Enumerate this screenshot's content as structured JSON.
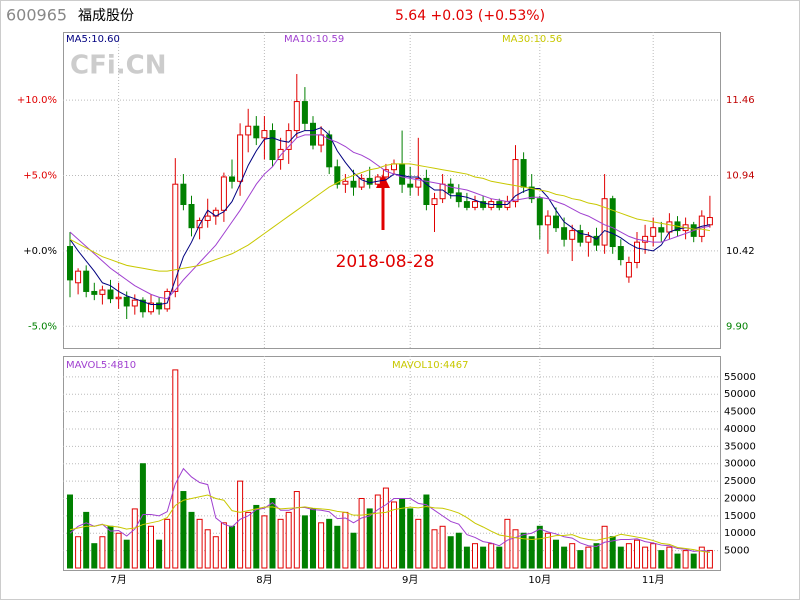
{
  "header": {
    "code": "600965",
    "name": "福成股份",
    "quote": "5.64 +0.03 (+0.53%)"
  },
  "watermark": "CFi.CN",
  "chart_data": [
    {
      "type": "candlestick",
      "annotation": "2018-08-28",
      "categories": [
        null,
        null,
        null,
        null,
        null,
        null,
        "7月",
        null,
        null,
        null,
        null,
        null,
        null,
        null,
        null,
        null,
        null,
        null,
        null,
        null,
        null,
        null,
        null,
        null,
        "8月",
        null,
        null,
        null,
        null,
        null,
        null,
        null,
        null,
        null,
        null,
        null,
        null,
        null,
        null,
        null,
        null,
        null,
        "9月",
        null,
        null,
        null,
        null,
        null,
        null,
        null,
        null,
        null,
        null,
        null,
        null,
        null,
        null,
        null,
        "10月",
        null,
        null,
        null,
        null,
        null,
        null,
        null,
        null,
        null,
        null,
        null,
        null,
        null,
        "11月",
        null,
        null,
        null,
        null,
        null,
        null,
        null
      ],
      "open": [
        10.45,
        10.2,
        10.28,
        10.14,
        10.12,
        10.15,
        10.09,
        10.1,
        10.04,
        10.08,
        10.0,
        10.06,
        10.02,
        10.14,
        10.88,
        10.74,
        10.58,
        10.63,
        10.66,
        10.7,
        10.93,
        10.9,
        11.22,
        11.28,
        11.2,
        11.25,
        11.05,
        11.12,
        11.25,
        11.45,
        11.3,
        11.15,
        11.22,
        11.0,
        10.88,
        10.9,
        10.86,
        10.92,
        10.88,
        10.93,
        10.98,
        11.02,
        10.88,
        10.86,
        10.92,
        10.74,
        10.78,
        10.88,
        10.82,
        10.76,
        10.72,
        10.76,
        10.72,
        10.76,
        10.72,
        10.76,
        11.05,
        10.86,
        10.78,
        10.6,
        10.66,
        10.58,
        10.5,
        10.56,
        10.48,
        10.52,
        10.46,
        10.78,
        10.45,
        10.24,
        10.34,
        10.48,
        10.52,
        10.58,
        10.55,
        10.62,
        10.56,
        10.6,
        10.52,
        10.6
      ],
      "high": [
        10.55,
        10.3,
        10.32,
        10.2,
        10.18,
        10.22,
        10.2,
        10.14,
        10.12,
        10.1,
        10.12,
        10.1,
        10.16,
        11.06,
        10.95,
        10.8,
        10.65,
        10.78,
        10.72,
        10.96,
        11.05,
        11.3,
        11.4,
        11.35,
        11.35,
        11.3,
        11.2,
        11.3,
        11.64,
        11.55,
        11.35,
        11.28,
        11.25,
        11.05,
        10.95,
        10.98,
        10.95,
        11.0,
        10.95,
        11.02,
        11.05,
        11.25,
        11.0,
        11.2,
        10.98,
        10.82,
        10.95,
        10.92,
        10.88,
        10.82,
        10.8,
        10.8,
        10.78,
        10.78,
        10.8,
        11.15,
        11.1,
        10.95,
        10.8,
        10.7,
        10.72,
        10.65,
        10.6,
        10.6,
        10.55,
        10.58,
        10.95,
        10.8,
        10.5,
        10.38,
        10.55,
        10.6,
        10.65,
        10.62,
        10.68,
        10.66,
        10.65,
        10.62,
        10.7,
        10.8
      ],
      "low": [
        10.1,
        10.12,
        10.1,
        10.08,
        10.05,
        10.06,
        10.02,
        9.95,
        9.98,
        9.96,
        9.98,
        9.98,
        10.0,
        10.1,
        10.7,
        10.52,
        10.5,
        10.58,
        10.6,
        10.62,
        10.85,
        10.8,
        11.1,
        11.15,
        11.05,
        11.0,
        10.98,
        11.02,
        11.2,
        11.25,
        11.12,
        11.1,
        10.95,
        10.85,
        10.82,
        10.8,
        10.84,
        10.85,
        10.86,
        10.9,
        10.95,
        10.82,
        10.8,
        10.8,
        10.7,
        10.55,
        10.75,
        10.78,
        10.72,
        10.7,
        10.7,
        10.7,
        10.7,
        10.7,
        10.7,
        10.72,
        10.82,
        10.75,
        10.5,
        10.4,
        10.55,
        10.45,
        10.35,
        10.45,
        10.38,
        10.42,
        10.4,
        10.4,
        10.32,
        10.2,
        10.3,
        10.4,
        10.45,
        10.48,
        10.5,
        10.52,
        10.5,
        10.48,
        10.48,
        10.58
      ],
      "close": [
        10.22,
        10.28,
        10.14,
        10.12,
        10.15,
        10.09,
        10.1,
        10.04,
        10.08,
        10.0,
        10.06,
        10.02,
        10.14,
        10.88,
        10.74,
        10.58,
        10.63,
        10.66,
        10.7,
        10.93,
        10.9,
        11.22,
        11.28,
        11.2,
        11.25,
        11.05,
        11.12,
        11.25,
        11.45,
        11.3,
        11.15,
        11.22,
        11.0,
        10.88,
        10.9,
        10.86,
        10.92,
        10.88,
        10.93,
        10.98,
        11.02,
        10.88,
        10.86,
        10.92,
        10.74,
        10.78,
        10.88,
        10.82,
        10.76,
        10.72,
        10.76,
        10.72,
        10.76,
        10.72,
        10.76,
        11.05,
        10.86,
        10.78,
        10.6,
        10.66,
        10.58,
        10.5,
        10.56,
        10.48,
        10.52,
        10.46,
        10.78,
        10.45,
        10.36,
        10.34,
        10.48,
        10.52,
        10.58,
        10.55,
        10.62,
        10.56,
        10.6,
        10.52,
        10.66,
        10.65
      ],
      "up_color": "#e00000",
      "down_color": "#008000",
      "series": [
        {
          "name": "MA5:10.60",
          "color": "#000080",
          "values": [
            10.5,
            10.42,
            10.35,
            10.28,
            10.2,
            10.18,
            10.14,
            10.11,
            10.09,
            10.07,
            10.05,
            10.05,
            10.06,
            10.22,
            10.38,
            10.48,
            10.6,
            10.7,
            10.66,
            10.69,
            10.76,
            10.88,
            11.01,
            11.11,
            11.19,
            11.2,
            11.18,
            11.17,
            11.23,
            11.25,
            11.25,
            11.27,
            11.22,
            11.11,
            11.03,
            10.96,
            10.91,
            10.89,
            10.9,
            10.91,
            10.95,
            10.94,
            10.93,
            10.93,
            10.88,
            10.84,
            10.84,
            10.8,
            10.8,
            10.79,
            10.77,
            10.75,
            10.74,
            10.74,
            10.74,
            10.8,
            10.83,
            10.85,
            10.85,
            10.79,
            10.7,
            10.62,
            10.58,
            10.54,
            10.53,
            10.5,
            10.56,
            10.54,
            10.51,
            10.47,
            10.44,
            10.43,
            10.42,
            10.46,
            10.55,
            10.57,
            10.58,
            10.57,
            10.59,
            10.6
          ]
        },
        {
          "name": "MA10:10.59",
          "color": "#a040d0",
          "values": [
            10.55,
            10.5,
            10.45,
            10.4,
            10.35,
            10.3,
            10.26,
            10.22,
            10.18,
            10.15,
            10.12,
            10.1,
            10.09,
            10.15,
            10.22,
            10.28,
            10.34,
            10.4,
            10.46,
            10.54,
            10.62,
            10.7,
            10.79,
            10.88,
            10.95,
            11.0,
            11.08,
            11.14,
            11.2,
            11.22,
            11.22,
            11.22,
            11.19,
            11.17,
            11.14,
            11.1,
            11.08,
            11.05,
            11.01,
            10.97,
            10.95,
            10.93,
            10.92,
            10.91,
            10.9,
            10.89,
            10.88,
            10.86,
            10.85,
            10.84,
            10.82,
            10.8,
            10.78,
            10.77,
            10.76,
            10.77,
            10.78,
            10.79,
            10.79,
            10.78,
            10.76,
            10.74,
            10.71,
            10.68,
            10.66,
            10.63,
            10.6,
            10.58,
            10.55,
            10.52,
            10.5,
            10.49,
            10.48,
            10.48,
            10.5,
            10.52,
            10.54,
            10.56,
            10.58,
            10.59
          ]
        },
        {
          "name": "MA30:10.56",
          "color": "#c8c800",
          "values": [
            10.5,
            10.47,
            10.44,
            10.41,
            10.38,
            10.36,
            10.34,
            10.32,
            10.31,
            10.3,
            10.29,
            10.28,
            10.28,
            10.29,
            10.3,
            10.31,
            10.32,
            10.34,
            10.36,
            10.38,
            10.4,
            10.43,
            10.46,
            10.5,
            10.54,
            10.58,
            10.62,
            10.66,
            10.7,
            10.74,
            10.78,
            10.82,
            10.86,
            10.89,
            10.92,
            10.94,
            10.96,
            10.98,
            10.99,
            11.01,
            11.02,
            11.02,
            11.02,
            11.01,
            11.0,
            10.99,
            10.98,
            10.97,
            10.96,
            10.95,
            10.93,
            10.92,
            10.9,
            10.89,
            10.88,
            10.87,
            10.86,
            10.85,
            10.84,
            10.83,
            10.81,
            10.8,
            10.78,
            10.77,
            10.75,
            10.74,
            10.72,
            10.7,
            10.68,
            10.66,
            10.64,
            10.63,
            10.62,
            10.61,
            10.6,
            10.59,
            10.58,
            10.57,
            10.57,
            10.56
          ]
        }
      ],
      "ylim": [
        9.75,
        11.93
      ],
      "yticks": [
        {
          "value": 9.9,
          "label": "9.90"
        },
        10.42,
        10.94,
        11.46
      ],
      "y2lim": [
        -6.42,
        14.5
      ],
      "y2ticks": [
        {
          "value": -5,
          "label": "-5.0%"
        },
        {
          "value": 0,
          "label": "+0.0%"
        },
        {
          "value": 5,
          "label": "+5.0%"
        },
        {
          "value": 10,
          "label": "+10.0%"
        }
      ],
      "grid": true
    },
    {
      "type": "volume",
      "values": [
        21000,
        9000,
        16000,
        7000,
        9000,
        12000,
        10000,
        8000,
        17000,
        30000,
        12000,
        8000,
        14000,
        57000,
        22000,
        16000,
        14000,
        11000,
        9000,
        13000,
        12000,
        25000,
        16000,
        18000,
        15000,
        20000,
        14000,
        16000,
        22000,
        15000,
        17000,
        13000,
        14000,
        12000,
        16000,
        10000,
        20000,
        17000,
        21000,
        23000,
        19000,
        20000,
        17000,
        14000,
        21000,
        11000,
        12000,
        9000,
        10000,
        6000,
        7000,
        6000,
        7000,
        6000,
        14000,
        11000,
        10000,
        9000,
        12000,
        10000,
        8000,
        6000,
        7000,
        5000,
        6000,
        7000,
        12000,
        9000,
        6000,
        7000,
        8000,
        6000,
        7000,
        5000,
        6000,
        4000,
        5000,
        4000,
        6000,
        5050
      ],
      "series": [
        {
          "name": "MAVOL5:4810",
          "color": "#a040d0",
          "values": [
            10000,
            12000,
            13000,
            12000,
            12600,
            10600,
            10800,
            9200,
            11200,
            15400,
            15400,
            15000,
            16200,
            24200,
            28600,
            26200,
            24600,
            24000,
            14400,
            12600,
            11800,
            14000,
            15000,
            16800,
            17200,
            18800,
            16600,
            16600,
            17400,
            17400,
            16800,
            16600,
            16200,
            14200,
            14400,
            13000,
            14400,
            15000,
            16800,
            18200,
            20000,
            20000,
            20000,
            18600,
            18200,
            16600,
            15000,
            13400,
            12600,
            9600,
            8800,
            7600,
            7200,
            6400,
            8000,
            8800,
            9600,
            10000,
            11200,
            10400,
            9800,
            9000,
            8600,
            7200,
            6400,
            6200,
            7400,
            7800,
            8200,
            8200,
            8400,
            7600,
            7200,
            6600,
            6400,
            5600,
            5400,
            4800,
            5000,
            4810
          ]
        },
        {
          "name": "MAVOL10:4467",
          "color": "#c8c800",
          "values": [
            11000,
            11500,
            12000,
            12000,
            12500,
            12000,
            11800,
            11200,
            11500,
            12500,
            13000,
            13500,
            14500,
            18000,
            19500,
            20000,
            20500,
            21000,
            20000,
            19500,
            16500,
            16000,
            16500,
            17000,
            17500,
            17600,
            17000,
            17200,
            17300,
            17600,
            17200,
            17000,
            16800,
            16300,
            16000,
            15200,
            15200,
            15500,
            15800,
            16000,
            16800,
            17200,
            17500,
            17300,
            17700,
            17300,
            17200,
            16600,
            15800,
            14500,
            12900,
            11800,
            10600,
            9500,
            9100,
            8700,
            8400,
            8200,
            8400,
            8800,
            9300,
            9400,
            9600,
            8700,
            8200,
            8000,
            8500,
            8900,
            9700,
            9300,
            8900,
            8500,
            7900,
            7100,
            6800,
            5900,
            5600,
            5300,
            4800,
            4467
          ]
        }
      ],
      "ylim": [
        0,
        61000
      ],
      "yticks": [
        5000,
        10000,
        15000,
        20000,
        25000,
        30000,
        35000,
        40000,
        45000,
        50000,
        55000
      ],
      "grid": true
    }
  ]
}
